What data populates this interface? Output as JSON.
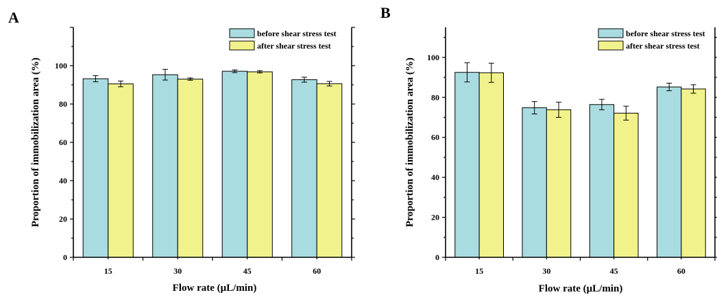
{
  "colors": {
    "before": "#a8dce0",
    "after": "#f2f28c",
    "stroke": "#000000"
  },
  "chart_data": [
    {
      "panel": "A",
      "type": "bar",
      "categories": [
        "15",
        "30",
        "45",
        "60"
      ],
      "series": [
        {
          "name": "before shear stress test",
          "values": [
            93.2,
            95.3,
            97.1,
            92.7
          ],
          "errors": [
            1.6,
            2.8,
            0.7,
            1.3
          ]
        },
        {
          "name": "after shear stress test",
          "values": [
            90.5,
            93.0,
            96.8,
            90.6
          ],
          "errors": [
            1.5,
            0.6,
            0.6,
            1.2
          ]
        }
      ],
      "xlabel": "Flow rate (μL/min)",
      "ylabel": "Proportion of immobilization area (%)",
      "ylim": [
        0,
        120
      ],
      "yticks": [
        "0",
        "20",
        "40",
        "60",
        "80",
        "100"
      ],
      "legend": "top-right",
      "grid": false
    },
    {
      "panel": "B",
      "type": "bar",
      "categories": [
        "15",
        "30",
        "45",
        "60"
      ],
      "series": [
        {
          "name": "before shear stress test",
          "values": [
            92.5,
            74.8,
            76.4,
            85.2
          ],
          "errors": [
            4.8,
            3.1,
            2.6,
            1.9
          ]
        },
        {
          "name": "after shear stress test",
          "values": [
            92.3,
            73.8,
            72.1,
            84.2
          ],
          "errors": [
            4.8,
            3.8,
            3.5,
            2.1
          ]
        }
      ],
      "xlabel": "Flow rate (μL/min)",
      "ylabel": "Proportion of immobilization area (%)",
      "ylim": [
        0,
        115
      ],
      "yticks": [
        "0",
        "20",
        "40",
        "60",
        "80",
        "100"
      ],
      "legend": "top-right",
      "grid": false
    }
  ]
}
